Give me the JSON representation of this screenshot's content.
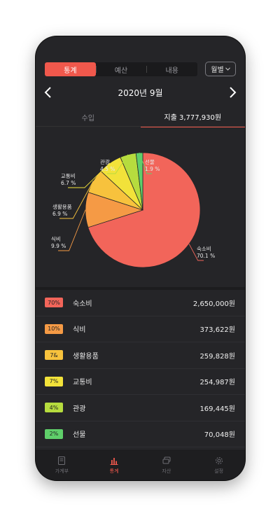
{
  "header": {
    "tabs": [
      {
        "label": "통계",
        "active": true
      },
      {
        "label": "예산",
        "active": false
      },
      {
        "label": "내용",
        "active": false
      }
    ],
    "period_select": "월별"
  },
  "month": {
    "title": "2020년 9월"
  },
  "ie_tabs": {
    "income_label": "수입",
    "expense_label": "지출 3,777,930원"
  },
  "chart_data": {
    "type": "pie",
    "slices": [
      {
        "name": "숙소비",
        "value": 70.1,
        "label": "70.1 %",
        "color": "#f2655a"
      },
      {
        "name": "식비",
        "value": 9.9,
        "label": "9.9 %",
        "color": "#f59a45"
      },
      {
        "name": "생활용품",
        "value": 6.9,
        "label": "6.9 %",
        "color": "#f7c23d"
      },
      {
        "name": "교통비",
        "value": 6.7,
        "label": "6.7 %",
        "color": "#f2e23a"
      },
      {
        "name": "관광",
        "value": 4.5,
        "label": "4.5 %",
        "color": "#b6dc3e"
      },
      {
        "name": "선물",
        "value": 1.9,
        "label": "1.9 %",
        "color": "#5fcf6a"
      }
    ]
  },
  "list": [
    {
      "badge": "70%",
      "name": "숙소비",
      "amount": "2,650,000원",
      "color": "#f2655a"
    },
    {
      "badge": "10%",
      "name": "식비",
      "amount": "373,622원",
      "color": "#f59a45"
    },
    {
      "badge": "7&",
      "name": "생활용품",
      "amount": "259,828원",
      "color": "#f7c23d"
    },
    {
      "badge": "7%",
      "name": "교통비",
      "amount": "254,987원",
      "color": "#f2e23a"
    },
    {
      "badge": "4%",
      "name": "관광",
      "amount": "169,445원",
      "color": "#b6dc3e"
    },
    {
      "badge": "2%",
      "name": "선물",
      "amount": "70,048원",
      "color": "#5fcf6a"
    }
  ],
  "bottom_nav": [
    {
      "label": "가계부",
      "icon": "ledger-icon",
      "active": false
    },
    {
      "label": "통계",
      "icon": "chart-icon",
      "active": true
    },
    {
      "label": "자산",
      "icon": "coins-icon",
      "active": false
    },
    {
      "label": "설정",
      "icon": "gear-icon",
      "active": false
    }
  ]
}
